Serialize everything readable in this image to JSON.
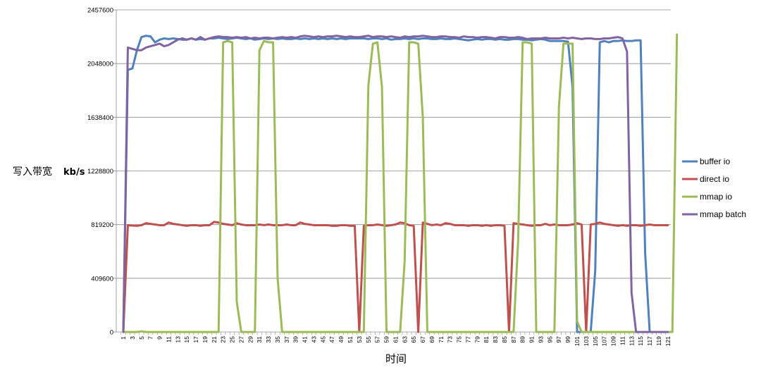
{
  "chart_data": {
    "type": "line",
    "title": "",
    "xlabel": "时间",
    "ylabel": "写入带宽",
    "ylabel_unit": "kb/s",
    "ylim": [
      0,
      2457600
    ],
    "yticks": [
      "0",
      "409600",
      "819200",
      "1228800",
      "1638400",
      "2048000",
      "2457600"
    ],
    "xlim": [
      1,
      121
    ],
    "xtick_step": 2,
    "grid": "horizontal",
    "legend_position": "right",
    "series": [
      {
        "name": "buffer io",
        "color": "#4F81BD",
        "values": [
          0,
          2000000,
          2010000,
          2150000,
          2250000,
          2260000,
          2255000,
          2210000,
          2230000,
          2240000,
          2235000,
          2240000,
          2235000,
          2230000,
          2230000,
          2240000,
          2230000,
          2235000,
          2230000,
          2240000,
          2240000,
          2245000,
          2240000,
          2235000,
          2240000,
          2245000,
          2240000,
          2235000,
          2240000,
          2230000,
          2235000,
          2240000,
          2235000,
          2240000,
          2235000,
          2240000,
          2235000,
          2235000,
          2240000,
          2235000,
          2240000,
          2235000,
          2240000,
          2235000,
          2240000,
          2235000,
          2240000,
          2235000,
          2240000,
          2235000,
          2240000,
          2240000,
          2240000,
          2240000,
          2235000,
          2240000,
          2240000,
          2235000,
          2240000,
          2230000,
          2235000,
          2235000,
          2240000,
          2235000,
          2240000,
          2235000,
          2240000,
          2240000,
          2235000,
          2235000,
          2240000,
          2235000,
          2235000,
          2240000,
          2235000,
          2230000,
          2225000,
          2230000,
          2235000,
          2230000,
          2235000,
          2235000,
          2230000,
          2235000,
          2230000,
          2230000,
          2235000,
          2235000,
          2230000,
          2230000,
          2225000,
          2230000,
          2235000,
          2230000,
          2220000,
          2220000,
          2220000,
          2220000,
          2215000,
          1870000,
          0,
          0,
          0,
          0,
          470000,
          2210000,
          2220000,
          2210000,
          2220000,
          2220000,
          2225000,
          2220000,
          2220000,
          2225000,
          2225000,
          600000,
          0,
          0,
          0,
          0,
          0
        ]
      },
      {
        "name": "direct io",
        "color": "#C0504D",
        "values": [
          0,
          815000,
          812000,
          810000,
          815000,
          830000,
          825000,
          820000,
          815000,
          815000,
          835000,
          825000,
          820000,
          815000,
          810000,
          815000,
          815000,
          810000,
          815000,
          815000,
          840000,
          835000,
          825000,
          820000,
          815000,
          830000,
          820000,
          815000,
          815000,
          815000,
          820000,
          815000,
          820000,
          815000,
          815000,
          815000,
          820000,
          815000,
          815000,
          835000,
          825000,
          820000,
          815000,
          815000,
          815000,
          815000,
          810000,
          810000,
          815000,
          815000,
          810000,
          810000,
          0,
          810000,
          815000,
          815000,
          820000,
          815000,
          810000,
          815000,
          820000,
          835000,
          830000,
          815000,
          810000,
          0,
          835000,
          825000,
          815000,
          820000,
          815000,
          830000,
          825000,
          815000,
          815000,
          815000,
          810000,
          815000,
          815000,
          810000,
          815000,
          810000,
          815000,
          815000,
          810000,
          0,
          830000,
          825000,
          820000,
          815000,
          810000,
          815000,
          815000,
          825000,
          815000,
          820000,
          815000,
          815000,
          815000,
          820000,
          830000,
          820000,
          0,
          820000,
          825000,
          835000,
          825000,
          820000,
          815000,
          810000,
          815000,
          810000,
          815000,
          815000,
          810000,
          815000,
          820000,
          815000,
          815000,
          815000,
          815000
        ]
      },
      {
        "name": "mmap io",
        "color": "#9BBB59",
        "values": [
          0,
          0,
          0,
          0,
          5000,
          0,
          0,
          0,
          0,
          0,
          0,
          0,
          0,
          0,
          0,
          0,
          0,
          0,
          0,
          0,
          0,
          0,
          2210000,
          2220000,
          2210000,
          230000,
          0,
          0,
          0,
          0,
          2150000,
          2220000,
          2210000,
          2210000,
          410000,
          0,
          0,
          0,
          0,
          0,
          0,
          0,
          0,
          0,
          0,
          0,
          0,
          0,
          0,
          0,
          0,
          0,
          0,
          0,
          1880000,
          2200000,
          2210000,
          1870000,
          0,
          0,
          0,
          0,
          540000,
          2210000,
          2210000,
          2200000,
          1640000,
          0,
          0,
          0,
          0,
          0,
          0,
          0,
          0,
          0,
          0,
          0,
          0,
          0,
          0,
          0,
          0,
          0,
          0,
          0,
          0,
          690000,
          2210000,
          2210000,
          2200000,
          0,
          0,
          0,
          0,
          0,
          1720000,
          2200000,
          2200000,
          2200000,
          80000,
          0,
          0,
          0,
          0,
          0,
          0,
          0,
          0,
          0,
          0,
          0,
          0,
          0,
          0,
          0,
          0,
          0,
          0,
          0,
          0,
          0,
          2270000
        ]
      },
      {
        "name": "mmap batch",
        "color": "#8064A2",
        "values": [
          0,
          2170000,
          2160000,
          2150000,
          2150000,
          2170000,
          2180000,
          2190000,
          2200000,
          2180000,
          2190000,
          2210000,
          2230000,
          2240000,
          2230000,
          2240000,
          2230000,
          2250000,
          2230000,
          2240000,
          2250000,
          2255000,
          2250000,
          2250000,
          2245000,
          2250000,
          2245000,
          2250000,
          2240000,
          2245000,
          2240000,
          2245000,
          2245000,
          2240000,
          2245000,
          2250000,
          2245000,
          2250000,
          2245000,
          2255000,
          2260000,
          2255000,
          2250000,
          2255000,
          2250000,
          2255000,
          2255000,
          2260000,
          2255000,
          2250000,
          2255000,
          2250000,
          2250000,
          2255000,
          2260000,
          2250000,
          2255000,
          2255000,
          2250000,
          2255000,
          2250000,
          2245000,
          2255000,
          2250000,
          2255000,
          2255000,
          2260000,
          2255000,
          2250000,
          2250000,
          2255000,
          2255000,
          2250000,
          2250000,
          2245000,
          2255000,
          2250000,
          2250000,
          2245000,
          2250000,
          2250000,
          2245000,
          2240000,
          2250000,
          2250000,
          2245000,
          2245000,
          2250000,
          2245000,
          2235000,
          2240000,
          2240000,
          2240000,
          2245000,
          2240000,
          2240000,
          2240000,
          2245000,
          2240000,
          2245000,
          2240000,
          2235000,
          2240000,
          2240000,
          2235000,
          2235000,
          2240000,
          2240000,
          2245000,
          2250000,
          2240000,
          2140000,
          300000,
          0,
          0,
          0,
          0,
          0,
          0,
          0,
          0
        ]
      }
    ]
  }
}
